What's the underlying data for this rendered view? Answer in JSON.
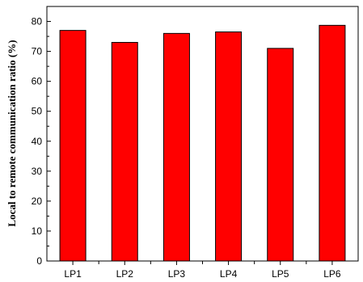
{
  "chart_data": {
    "type": "bar",
    "title": "",
    "xlabel": "",
    "ylabel": "Local to remote communication ratio (%)",
    "categories": [
      "LP1",
      "LP2",
      "LP3",
      "LP4",
      "LP5",
      "LP6"
    ],
    "values": [
      77,
      73,
      76,
      76.5,
      71,
      78.7
    ],
    "ylim": [
      0,
      85
    ],
    "yticks": [
      0,
      10,
      20,
      30,
      40,
      50,
      60,
      70,
      80
    ],
    "ytick_labels": [
      "0",
      "10",
      "20",
      "30",
      "40",
      "50",
      "60",
      "70",
      "80"
    ],
    "grid": false,
    "legend": "none",
    "bar_color": "#ff0000",
    "bar_edge_color": "#000000"
  }
}
